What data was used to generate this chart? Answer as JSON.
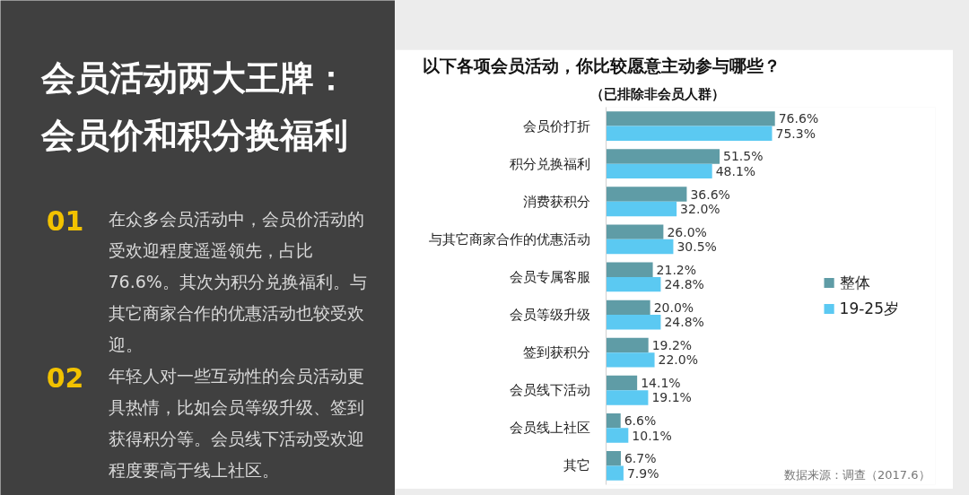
{
  "chart_data": {
    "type": "bar",
    "orientation": "horizontal",
    "title": "以下各项会员活动，你比较愿意主动参与哪些？",
    "subtitle": "（已排除非会员人群）",
    "categories": [
      "会员价打折",
      "积分兑换福利",
      "消费获积分",
      "与其它商家合作的优惠活动",
      "会员专属客服",
      "会员等级升级",
      "签到获积分",
      "会员线下活动",
      "会员线上社区",
      "其它"
    ],
    "series": [
      {
        "name": "整体",
        "color": "#5f9ca6",
        "values": [
          76.6,
          51.5,
          36.6,
          26.0,
          21.2,
          20.0,
          19.2,
          14.1,
          6.6,
          6.7
        ],
        "value_labels": [
          "76.6%",
          "51.5%",
          "36.6%",
          "26.0%",
          "21.2%",
          "20.0%",
          "19.2%",
          "14.1%",
          "6.6%",
          "6.7%"
        ]
      },
      {
        "name": "19-25岁",
        "color": "#5bc9f2",
        "values": [
          75.3,
          48.1,
          32.0,
          30.5,
          24.8,
          24.8,
          22.0,
          19.1,
          10.1,
          7.9
        ],
        "value_labels": [
          "75.3%",
          "48.1%",
          "32.0%",
          "30.5%",
          "24.8%",
          "24.8%",
          "22.0%",
          "19.1%",
          "10.1%",
          "7.9%"
        ]
      }
    ],
    "legend": "right",
    "tick_labels": "y",
    "annotations": [
      "会员活动两大王牌：会员价和积分换福利",
      "01",
      "在众多会员活动中，会员价活动的受欢迎程度遥遥领先，占比76.6%。其次为积分兑换福利。与其它商家合作的优惠活动也较受欢迎。",
      "02",
      "年轻人对一些互动性的会员活动更具热情，比如会员等级升级、签到获得积分等。会员线下活动受欢迎程度要高于线上社区。",
      "数据来源：调查（2017.6）"
    ]
  }
}
